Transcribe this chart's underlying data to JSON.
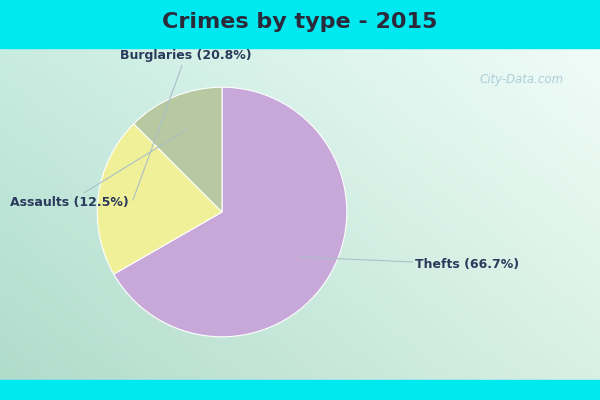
{
  "title": "Crimes by type - 2015",
  "slices": [
    {
      "label": "Thefts",
      "pct": 66.7,
      "color": "#c8a8d8"
    },
    {
      "label": "Burglaries",
      "pct": 20.8,
      "color": "#f0f098"
    },
    {
      "label": "Assaults",
      "pct": 12.5,
      "color": "#b8c8a0"
    }
  ],
  "title_fontsize": 16,
  "title_fontweight": "bold",
  "label_fontsize": 9,
  "cyan_color": "#00e8f0",
  "bg_topleft": "#c8ece0",
  "bg_topright": "#e8f8f4",
  "bg_bottomleft": "#b8e0c8",
  "bg_bottomright": "#d0eee0",
  "watermark": "City-Data.com",
  "title_color": "#2a2a3a",
  "label_color": "#2a3a5a"
}
